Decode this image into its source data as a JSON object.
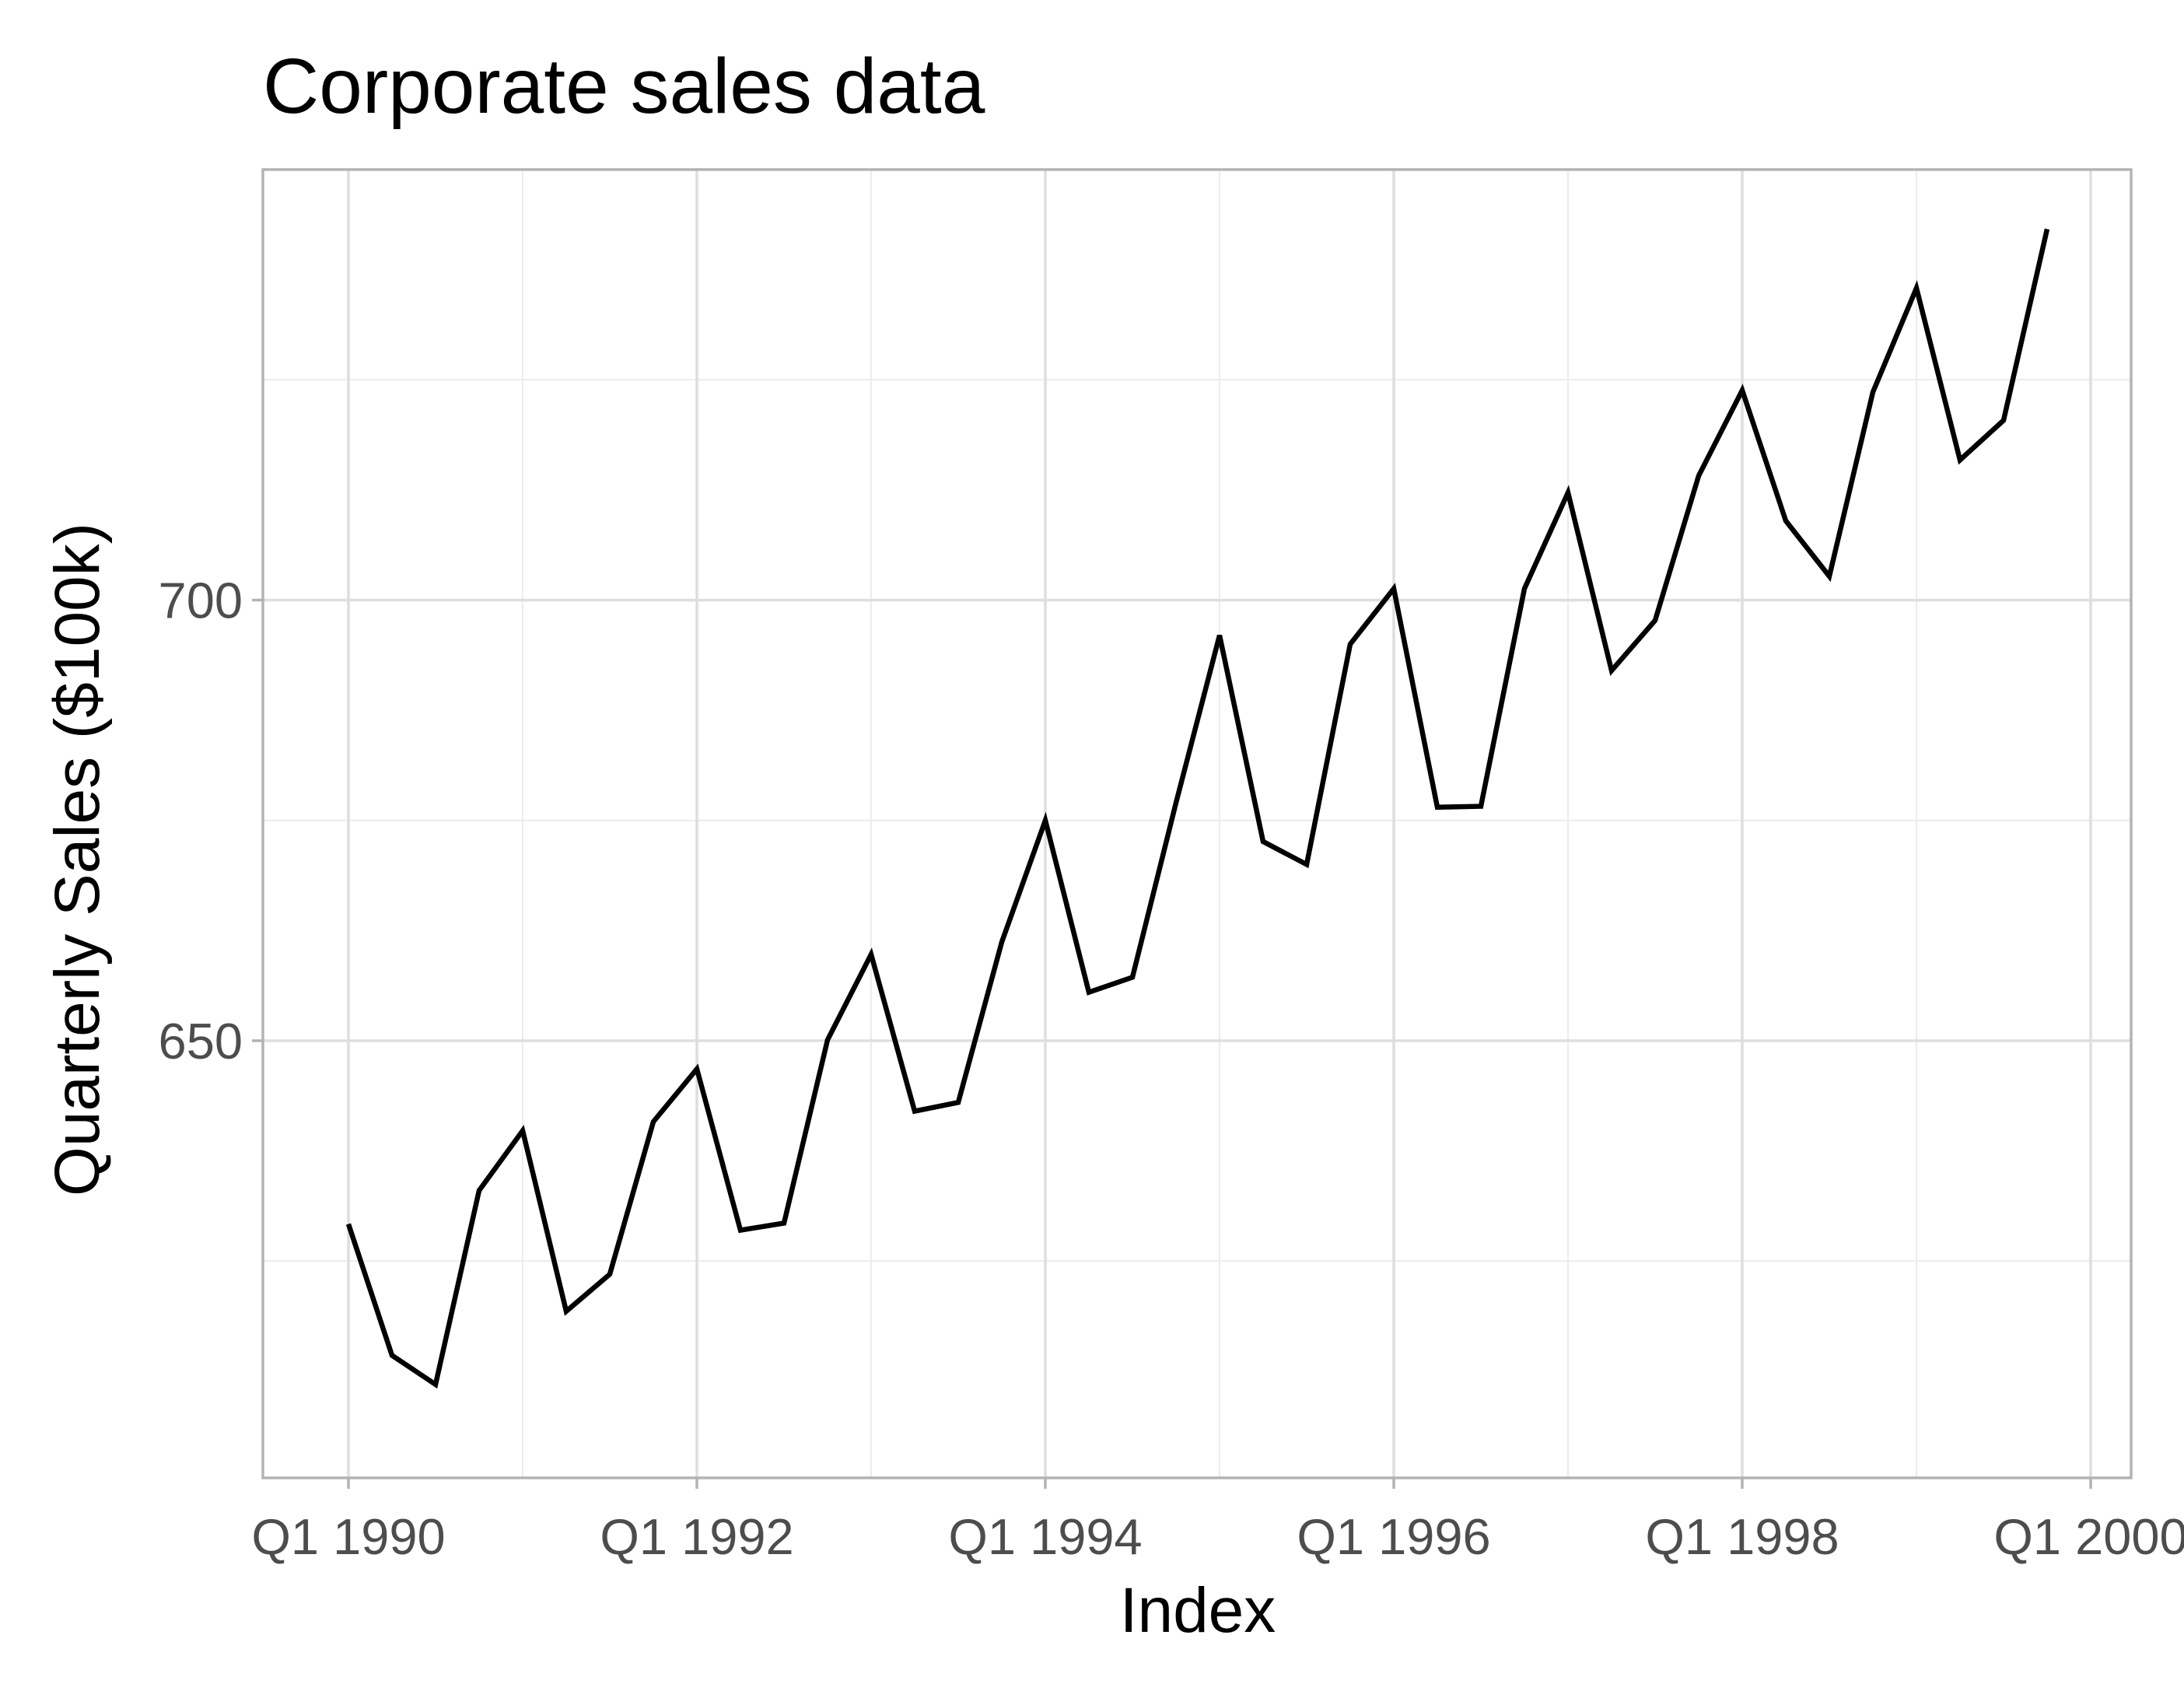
{
  "chart_data": {
    "type": "line",
    "title": "Corporate sales data",
    "xlabel": "Index",
    "ylabel": "Quarterly Sales ($100k)",
    "x_type": "quarterly",
    "x_start": "Q1 1990",
    "x_end": "Q4 1999",
    "xlim": [
      "Q1 1990",
      "Q1 2000"
    ],
    "ylim": [
      580,
      728
    ],
    "x_ticks": [
      "Q1 1990",
      "Q1 1992",
      "Q1 1994",
      "Q1 1996",
      "Q1 1998",
      "Q1 2000"
    ],
    "y_ticks": [
      650,
      700
    ],
    "y_minor_ticks": [
      625,
      675,
      725
    ],
    "grid": true,
    "line_color": "#000000",
    "series": [
      {
        "values": [
          629.2,
          614.3,
          611.0,
          633.0,
          639.8,
          619.3,
          623.5,
          640.8,
          646.8,
          628.5,
          629.3,
          650.1,
          659.8,
          642.0,
          643.0,
          661.2,
          675.0,
          655.5,
          657.2,
          677.0,
          696.0,
          672.6,
          670.0,
          695.0,
          701.3,
          676.5,
          676.6,
          701.3,
          712.2,
          692.0,
          697.7,
          714.1,
          723.8,
          709.0,
          702.7,
          723.6,
          735.4,
          715.9,
          720.4,
          742.1
        ]
      }
    ]
  }
}
